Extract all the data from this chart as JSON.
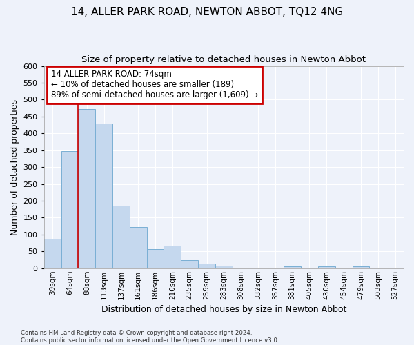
{
  "title": "14, ALLER PARK ROAD, NEWTON ABBOT, TQ12 4NG",
  "subtitle": "Size of property relative to detached houses in Newton Abbot",
  "xlabel": "Distribution of detached houses by size in Newton Abbot",
  "ylabel": "Number of detached properties",
  "categories": [
    "39sqm",
    "64sqm",
    "88sqm",
    "113sqm",
    "137sqm",
    "161sqm",
    "186sqm",
    "210sqm",
    "235sqm",
    "259sqm",
    "283sqm",
    "308sqm",
    "332sqm",
    "357sqm",
    "381sqm",
    "405sqm",
    "430sqm",
    "454sqm",
    "479sqm",
    "503sqm",
    "527sqm"
  ],
  "values": [
    88,
    348,
    472,
    430,
    185,
    122,
    57,
    68,
    25,
    13,
    8,
    0,
    0,
    0,
    5,
    0,
    5,
    0,
    5,
    0,
    0
  ],
  "bar_color": "#c5d8ee",
  "bar_edge_color": "#7aafd4",
  "red_line_x": 1.5,
  "annotation_line1": "14 ALLER PARK ROAD: 74sqm",
  "annotation_line2": "← 10% of detached houses are smaller (189)",
  "annotation_line3": "89% of semi-detached houses are larger (1,609) →",
  "annotation_box_color": "#ffffff",
  "annotation_border_color": "#cc0000",
  "ylim": [
    0,
    600
  ],
  "yticks": [
    0,
    50,
    100,
    150,
    200,
    250,
    300,
    350,
    400,
    450,
    500,
    550,
    600
  ],
  "footer": "Contains HM Land Registry data © Crown copyright and database right 2024.\nContains public sector information licensed under the Open Government Licence v3.0.",
  "background_color": "#eef2fa",
  "grid_color": "#ffffff",
  "title_fontsize": 11,
  "subtitle_fontsize": 9.5,
  "xlabel_fontsize": 9,
  "ylabel_fontsize": 9
}
